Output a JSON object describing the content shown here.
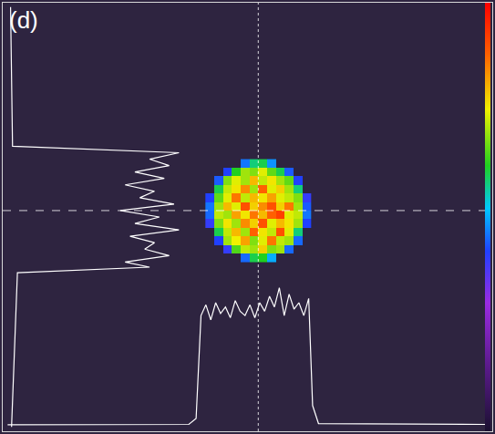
{
  "chart_data": {
    "type": "heatmap",
    "panel_label": "(d)",
    "xlim": [
      0,
      100
    ],
    "ylim": [
      0,
      100
    ],
    "tick_labels": false,
    "grid": false,
    "x": [
      42.3,
      44.1,
      45.9,
      47.7,
      49.5,
      51.3,
      53.1,
      54.9,
      56.7,
      58.5,
      60.3,
      62.1
    ],
    "y": [
      40.5,
      42.5,
      44.5,
      46.5,
      48.5,
      50.5,
      52.5,
      54.5,
      56.5,
      58.5,
      60.5,
      62.5
    ],
    "cells": [
      [
        null,
        null,
        null,
        null,
        0.45,
        0.6,
        0.62,
        0.5,
        null,
        null,
        null,
        null
      ],
      [
        null,
        null,
        0.4,
        0.65,
        0.72,
        0.7,
        0.78,
        0.68,
        0.7,
        0.45,
        null,
        null
      ],
      [
        null,
        0.42,
        0.7,
        0.75,
        0.82,
        0.68,
        0.74,
        0.86,
        0.72,
        0.7,
        0.45,
        null
      ],
      [
        null,
        0.6,
        0.72,
        0.8,
        0.7,
        0.88,
        0.76,
        0.72,
        0.9,
        0.74,
        0.58,
        null
      ],
      [
        0.4,
        0.68,
        0.76,
        0.7,
        0.84,
        0.78,
        0.9,
        0.74,
        0.8,
        0.76,
        0.7,
        0.42
      ],
      [
        0.45,
        0.72,
        0.7,
        0.82,
        0.76,
        0.86,
        0.8,
        0.88,
        0.92,
        0.74,
        0.72,
        0.46
      ],
      [
        0.46,
        0.7,
        0.8,
        0.74,
        0.9,
        0.78,
        0.84,
        0.9,
        0.78,
        0.86,
        0.7,
        0.44
      ],
      [
        0.42,
        0.66,
        0.74,
        0.86,
        0.72,
        0.8,
        0.76,
        0.82,
        0.74,
        0.72,
        0.68,
        0.4
      ],
      [
        null,
        0.6,
        0.72,
        0.76,
        0.84,
        0.7,
        0.88,
        0.74,
        0.78,
        0.7,
        0.58,
        null
      ],
      [
        null,
        0.44,
        0.68,
        0.74,
        0.7,
        0.8,
        0.72,
        0.76,
        0.7,
        0.66,
        0.42,
        null
      ],
      [
        null,
        null,
        0.42,
        0.62,
        0.7,
        0.68,
        0.74,
        0.66,
        0.6,
        0.44,
        null,
        null
      ],
      [
        null,
        null,
        null,
        null,
        0.46,
        0.58,
        0.6,
        0.48,
        null,
        null,
        null,
        null
      ]
    ],
    "colorbar_range": [
      0,
      1
    ],
    "crosshair_x": 52.2,
    "crosshair_y": 51.5,
    "x_profile": {
      "color": "#ffffff",
      "x": [
        1,
        38,
        39.5,
        40.5,
        41.5,
        42.5,
        43.5,
        44.5,
        45.5,
        46.5,
        47.5,
        48.5,
        49.5,
        50.5,
        51.5,
        52.5,
        53.5,
        54.5,
        55.5,
        56.5,
        57.5,
        58.5,
        59.5,
        60.5,
        61.5,
        62.5,
        63.3,
        64.5,
        99
      ],
      "y": [
        1.5,
        1.6,
        3,
        27,
        29.5,
        26,
        30,
        27.5,
        29,
        26.5,
        30.5,
        28,
        27,
        29.5,
        26.5,
        30,
        28,
        31.5,
        29,
        33.5,
        27,
        32,
        28.5,
        30,
        27,
        31,
        6,
        1.8,
        1.6
      ]
    },
    "y_profile": {
      "color": "#ffffff",
      "x": [
        1.6,
        2,
        36,
        30,
        34,
        27,
        33,
        25,
        31,
        28,
        35,
        24,
        32,
        27,
        36,
        26,
        31,
        29,
        34,
        25,
        30,
        3,
        1.8
      ],
      "y": [
        99,
        66.5,
        65,
        63.5,
        62,
        60.5,
        59,
        57.5,
        56,
        54.5,
        53,
        51.5,
        50,
        48.5,
        47,
        45.5,
        44,
        42.5,
        41,
        39.5,
        38.3,
        37,
        1
      ]
    }
  }
}
